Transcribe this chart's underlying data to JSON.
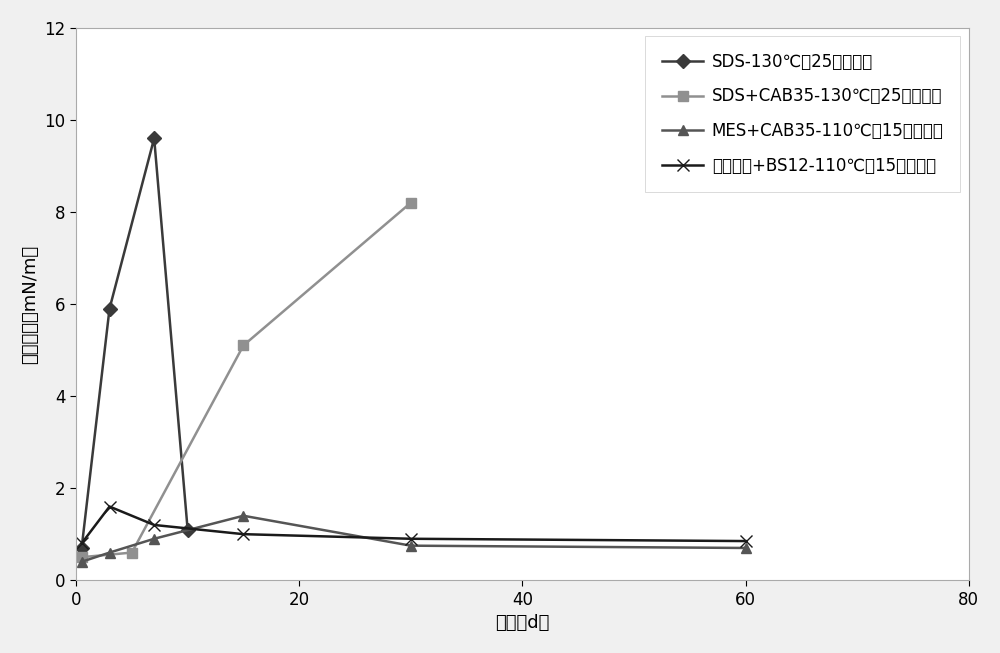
{
  "title": "",
  "xlabel": "时间（d）",
  "ylabel": "界面张力（mN/m）",
  "xlim": [
    0,
    80
  ],
  "ylim": [
    0,
    12
  ],
  "xticks": [
    0,
    20,
    40,
    60,
    80
  ],
  "yticks": [
    0,
    2,
    4,
    6,
    8,
    10,
    12
  ],
  "series": [
    {
      "label": "SDS-130℃、25万矿化度",
      "x": [
        0.5,
        3,
        7,
        10
      ],
      "y": [
        0.7,
        5.9,
        9.6,
        1.1
      ],
      "color": "#3a3a3a",
      "marker": "D",
      "linewidth": 1.8,
      "markersize": 7
    },
    {
      "label": "SDS+CAB35-130℃、25万矿化度",
      "x": [
        0.5,
        5,
        15,
        30
      ],
      "y": [
        0.5,
        0.6,
        5.1,
        8.2
      ],
      "color": "#909090",
      "marker": "s",
      "linewidth": 1.8,
      "markersize": 7
    },
    {
      "label": "MES+CAB35-110℃、15万矿化度",
      "x": [
        0.5,
        3,
        7,
        15,
        30,
        60
      ],
      "y": [
        0.4,
        0.6,
        0.9,
        1.4,
        0.75,
        0.7
      ],
      "color": "#555555",
      "marker": "^",
      "linewidth": 1.8,
      "markersize": 7
    },
    {
      "label": "鼠李糖脂+BS12-110℃、15万矿化度",
      "x": [
        0.5,
        3,
        7,
        15,
        30,
        60
      ],
      "y": [
        0.8,
        1.6,
        1.2,
        1.0,
        0.9,
        0.85
      ],
      "color": "#1a1a1a",
      "marker": "x",
      "linewidth": 1.8,
      "markersize": 9
    }
  ],
  "legend_fontsize": 12,
  "axis_fontsize": 13,
  "tick_fontsize": 12,
  "figure_bg": "#f0f0f0",
  "axes_bg": "#ffffff",
  "border_color": "#888888"
}
